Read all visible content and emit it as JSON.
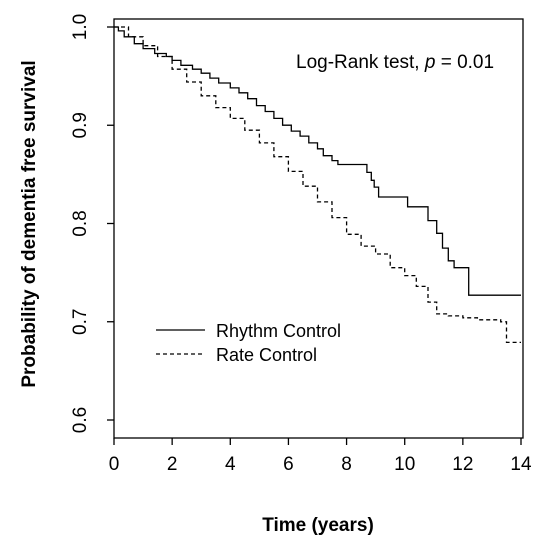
{
  "chart_data": {
    "type": "line",
    "title": "",
    "xlabel": "Time (years)",
    "ylabel": "Probability of dementia free survival",
    "xlim": [
      0,
      14
    ],
    "ylim": [
      0.6,
      1.0
    ],
    "x_ticks": [
      "0",
      "2",
      "4",
      "6",
      "8",
      "10",
      "12",
      "14"
    ],
    "y_ticks": [
      "0.6",
      "0.7",
      "0.8",
      "0.9",
      "1.0"
    ],
    "grid": false,
    "legend_position": "bottom-left",
    "annotation": {
      "prefix": "Log-Rank test, ",
      "p_symbol": "p",
      "suffix": " = 0.01"
    },
    "series": [
      {
        "name": "Rhythm Control",
        "line_style": "solid",
        "color": "#000000",
        "x": [
          0,
          0.15,
          0.35,
          0.7,
          1.0,
          1.4,
          1.8,
          2.0,
          2.3,
          2.7,
          3.0,
          3.3,
          3.6,
          4.0,
          4.3,
          4.6,
          4.9,
          5.2,
          5.5,
          5.8,
          6.1,
          6.4,
          6.7,
          7.0,
          7.2,
          7.5,
          7.7,
          7.9,
          8.1,
          8.4,
          8.7,
          8.85,
          8.95,
          9.1,
          9.5,
          9.8,
          10.1,
          10.4,
          10.8,
          11.1,
          11.3,
          11.5,
          11.7,
          12.2,
          14.0
        ],
        "y": [
          1.0,
          0.996,
          0.99,
          0.983,
          0.978,
          0.973,
          0.97,
          0.966,
          0.961,
          0.957,
          0.953,
          0.948,
          0.943,
          0.938,
          0.933,
          0.927,
          0.92,
          0.914,
          0.907,
          0.9,
          0.894,
          0.889,
          0.882,
          0.876,
          0.869,
          0.864,
          0.86,
          0.86,
          0.86,
          0.86,
          0.852,
          0.844,
          0.837,
          0.827,
          0.827,
          0.827,
          0.817,
          0.817,
          0.803,
          0.79,
          0.775,
          0.762,
          0.755,
          0.727,
          0.727
        ]
      },
      {
        "name": "Rate Control",
        "line_style": "dashed",
        "color": "#000000",
        "x": [
          0,
          0.5,
          1.0,
          1.5,
          2.0,
          2.5,
          3.0,
          3.5,
          4.0,
          4.5,
          5.0,
          5.5,
          6.0,
          6.5,
          7.0,
          7.5,
          8.0,
          8.5,
          9.0,
          9.5,
          10.0,
          10.4,
          10.8,
          11.1,
          11.5,
          12.0,
          12.5,
          13.0,
          13.3,
          13.5,
          14.0
        ],
        "y": [
          1.0,
          0.99,
          0.981,
          0.97,
          0.957,
          0.944,
          0.93,
          0.918,
          0.907,
          0.895,
          0.882,
          0.868,
          0.853,
          0.838,
          0.822,
          0.806,
          0.789,
          0.777,
          0.769,
          0.755,
          0.747,
          0.736,
          0.72,
          0.708,
          0.706,
          0.704,
          0.702,
          0.702,
          0.7,
          0.679,
          0.679
        ]
      }
    ]
  }
}
